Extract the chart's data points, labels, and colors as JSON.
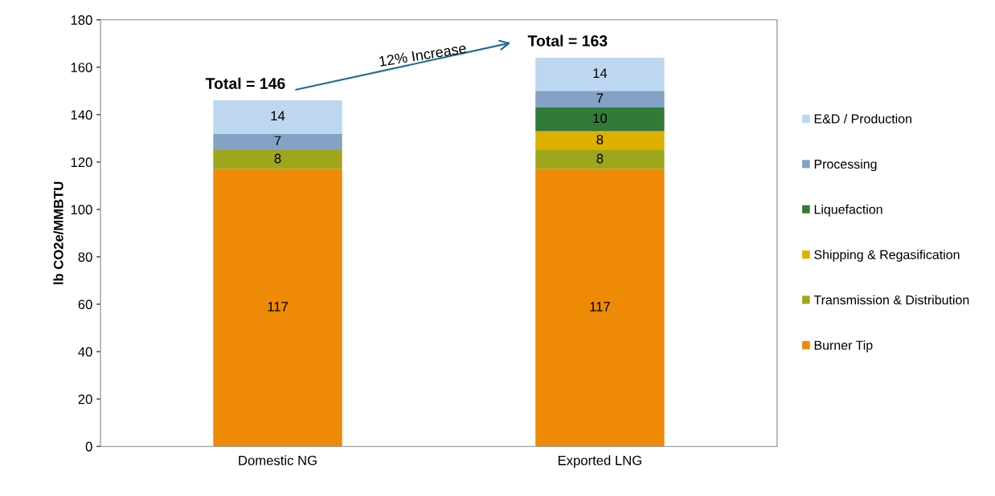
{
  "chart_data": {
    "type": "bar",
    "stacked": true,
    "ylabel": "lb CO2e/MMBTU",
    "categories": [
      "Domestic NG",
      "Exported LNG"
    ],
    "series": [
      {
        "name": "Burner Tip",
        "color": "#ee8a06",
        "values": [
          117,
          117
        ]
      },
      {
        "name": "Transmission & Distribution",
        "color": "#9ea61c",
        "values": [
          8,
          8
        ]
      },
      {
        "name": "Shipping & Regasification",
        "color": "#ddb000",
        "values": [
          null,
          8
        ]
      },
      {
        "name": "Liquefaction",
        "color": "#317a38",
        "values": [
          null,
          10
        ]
      },
      {
        "name": "Processing",
        "color": "#83a2c6",
        "values": [
          7,
          7
        ]
      },
      {
        "name": "E&D / Production",
        "color": "#bcd7ef",
        "values": [
          14,
          14
        ]
      }
    ],
    "data_labels": true,
    "totals": [
      "Total = 146",
      "Total = 163"
    ],
    "annotations": [
      "12% Increase"
    ],
    "ylim": [
      0,
      180
    ],
    "yticks": [
      0,
      20,
      40,
      60,
      80,
      100,
      120,
      140,
      160,
      180
    ],
    "grid": false,
    "legend": "right"
  }
}
